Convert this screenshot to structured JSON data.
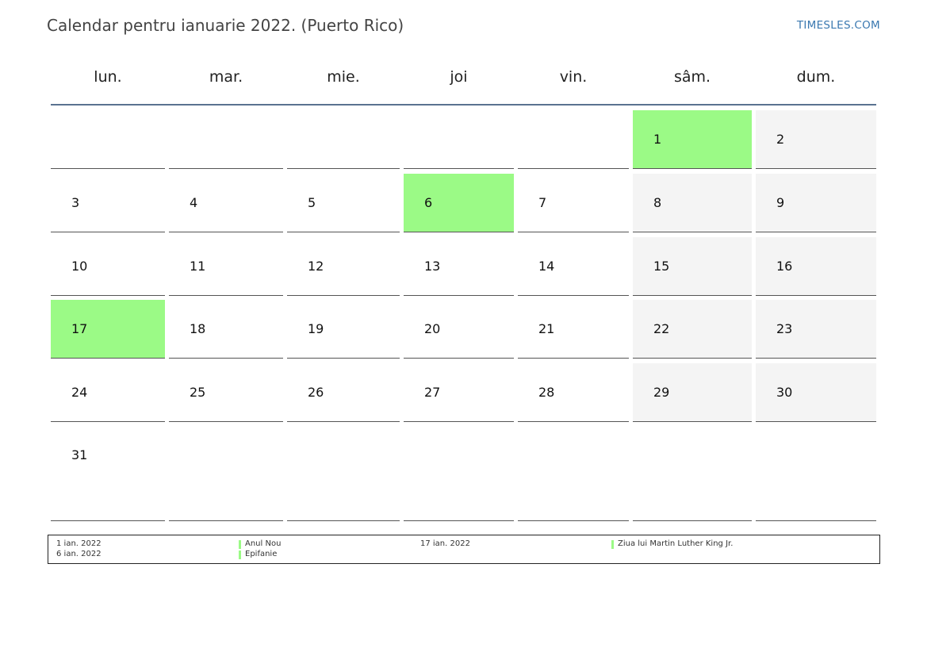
{
  "header": {
    "title": "Calendar pentru ianuarie 2022. (Puerto Rico)",
    "brand": "TIMESLES.COM"
  },
  "colors": {
    "holiday": "#9bfa86",
    "weekend": "#f4f4f4",
    "rule": "#5a7290",
    "brand": "#3a78b0"
  },
  "calendar": {
    "day_names": [
      "lun.",
      "mar.",
      "mie.",
      "joi",
      "vin.",
      "sâm.",
      "dum."
    ],
    "weeks": [
      [
        "",
        "",
        "",
        "",
        "",
        "1",
        "2"
      ],
      [
        "3",
        "4",
        "5",
        "6",
        "7",
        "8",
        "9"
      ],
      [
        "10",
        "11",
        "12",
        "13",
        "14",
        "15",
        "16"
      ],
      [
        "17",
        "18",
        "19",
        "20",
        "21",
        "22",
        "23"
      ],
      [
        "24",
        "25",
        "26",
        "27",
        "28",
        "29",
        "30"
      ],
      [
        "31",
        "",
        "",
        "",
        "",
        "",
        ""
      ]
    ],
    "holiday_days": [
      "1",
      "6",
      "17"
    ]
  },
  "legend": {
    "items": [
      {
        "date": "1 ian. 2022",
        "name": "Anul Nou"
      },
      {
        "date": "6 ian. 2022",
        "name": "Epifanie"
      },
      {
        "date": "17 ian. 2022",
        "name": "Ziua lui Martin Luther King Jr."
      }
    ]
  }
}
